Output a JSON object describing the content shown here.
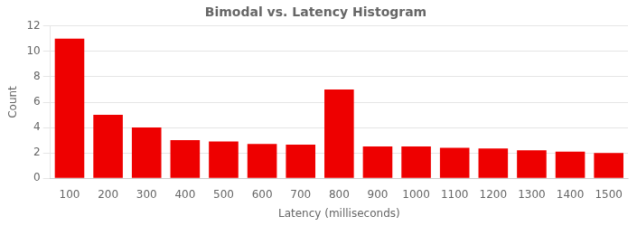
{
  "chart_data": {
    "type": "bar",
    "title": "Bimodal vs. Latency Histogram",
    "xlabel": "Latency (milliseconds)",
    "ylabel": "Count",
    "categories": [
      100,
      200,
      300,
      400,
      500,
      600,
      700,
      800,
      900,
      1000,
      1100,
      1200,
      1300,
      1400,
      1500
    ],
    "values": [
      11,
      5,
      4,
      3,
      2.9,
      2.7,
      2.65,
      7,
      2.5,
      2.5,
      2.4,
      2.35,
      2.2,
      2.1,
      2.0
    ],
    "color": "#EE0000",
    "ylim": [
      0,
      12
    ],
    "yticks": [
      0,
      2,
      4,
      6,
      8,
      10,
      12
    ],
    "grid": true
  }
}
